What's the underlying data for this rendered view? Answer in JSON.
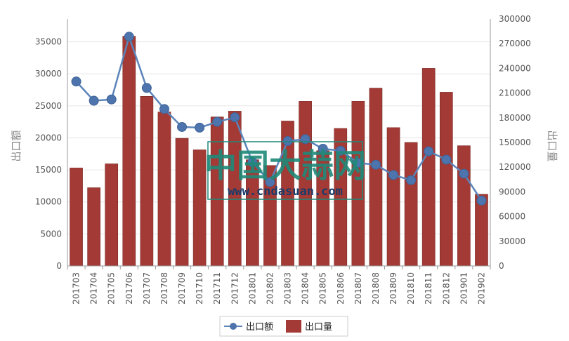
{
  "chart_data": {
    "type": "bar",
    "categories": [
      "201703",
      "201704",
      "201705",
      "201706",
      "201707",
      "201708",
      "201709",
      "201710",
      "201711",
      "201712",
      "201801",
      "201802",
      "201803",
      "201804",
      "201805",
      "201806",
      "201807",
      "201808",
      "201809",
      "201810",
      "201811",
      "201812",
      "201901",
      "201902"
    ],
    "series": [
      {
        "name": "出口量",
        "type": "bar",
        "axis": "right",
        "color": "#a33a35",
        "values": [
          119000,
          95000,
          124000,
          279000,
          206000,
          187000,
          155000,
          141000,
          181000,
          188000,
          129000,
          122000,
          176000,
          200000,
          140000,
          167000,
          200000,
          216000,
          168000,
          150000,
          240000,
          211000,
          146000,
          87000
        ]
      },
      {
        "name": "出口额",
        "type": "line",
        "axis": "left",
        "color": "#5b84b9",
        "values": [
          28800,
          25800,
          26000,
          35800,
          27800,
          24500,
          21700,
          21600,
          22500,
          23200,
          16200,
          13100,
          19500,
          19800,
          18300,
          18000,
          16100,
          15800,
          14200,
          13400,
          17900,
          16600,
          14400,
          10200
        ]
      }
    ],
    "ylabel_left": "出口额",
    "ylabel_right": "出口量",
    "ylim_left": [
      0,
      38571
    ],
    "yticks_left": [
      0,
      5000,
      10000,
      15000,
      20000,
      25000,
      30000,
      35000
    ],
    "ylim_right": [
      0,
      300000
    ],
    "yticks_right": [
      0,
      30000,
      60000,
      90000,
      120000,
      150000,
      180000,
      210000,
      240000,
      270000,
      300000
    ],
    "grid": true,
    "legend": "bottom-center"
  },
  "watermark": {
    "cn": "中国大蒜网",
    "url": "www.cndasuan.com"
  }
}
